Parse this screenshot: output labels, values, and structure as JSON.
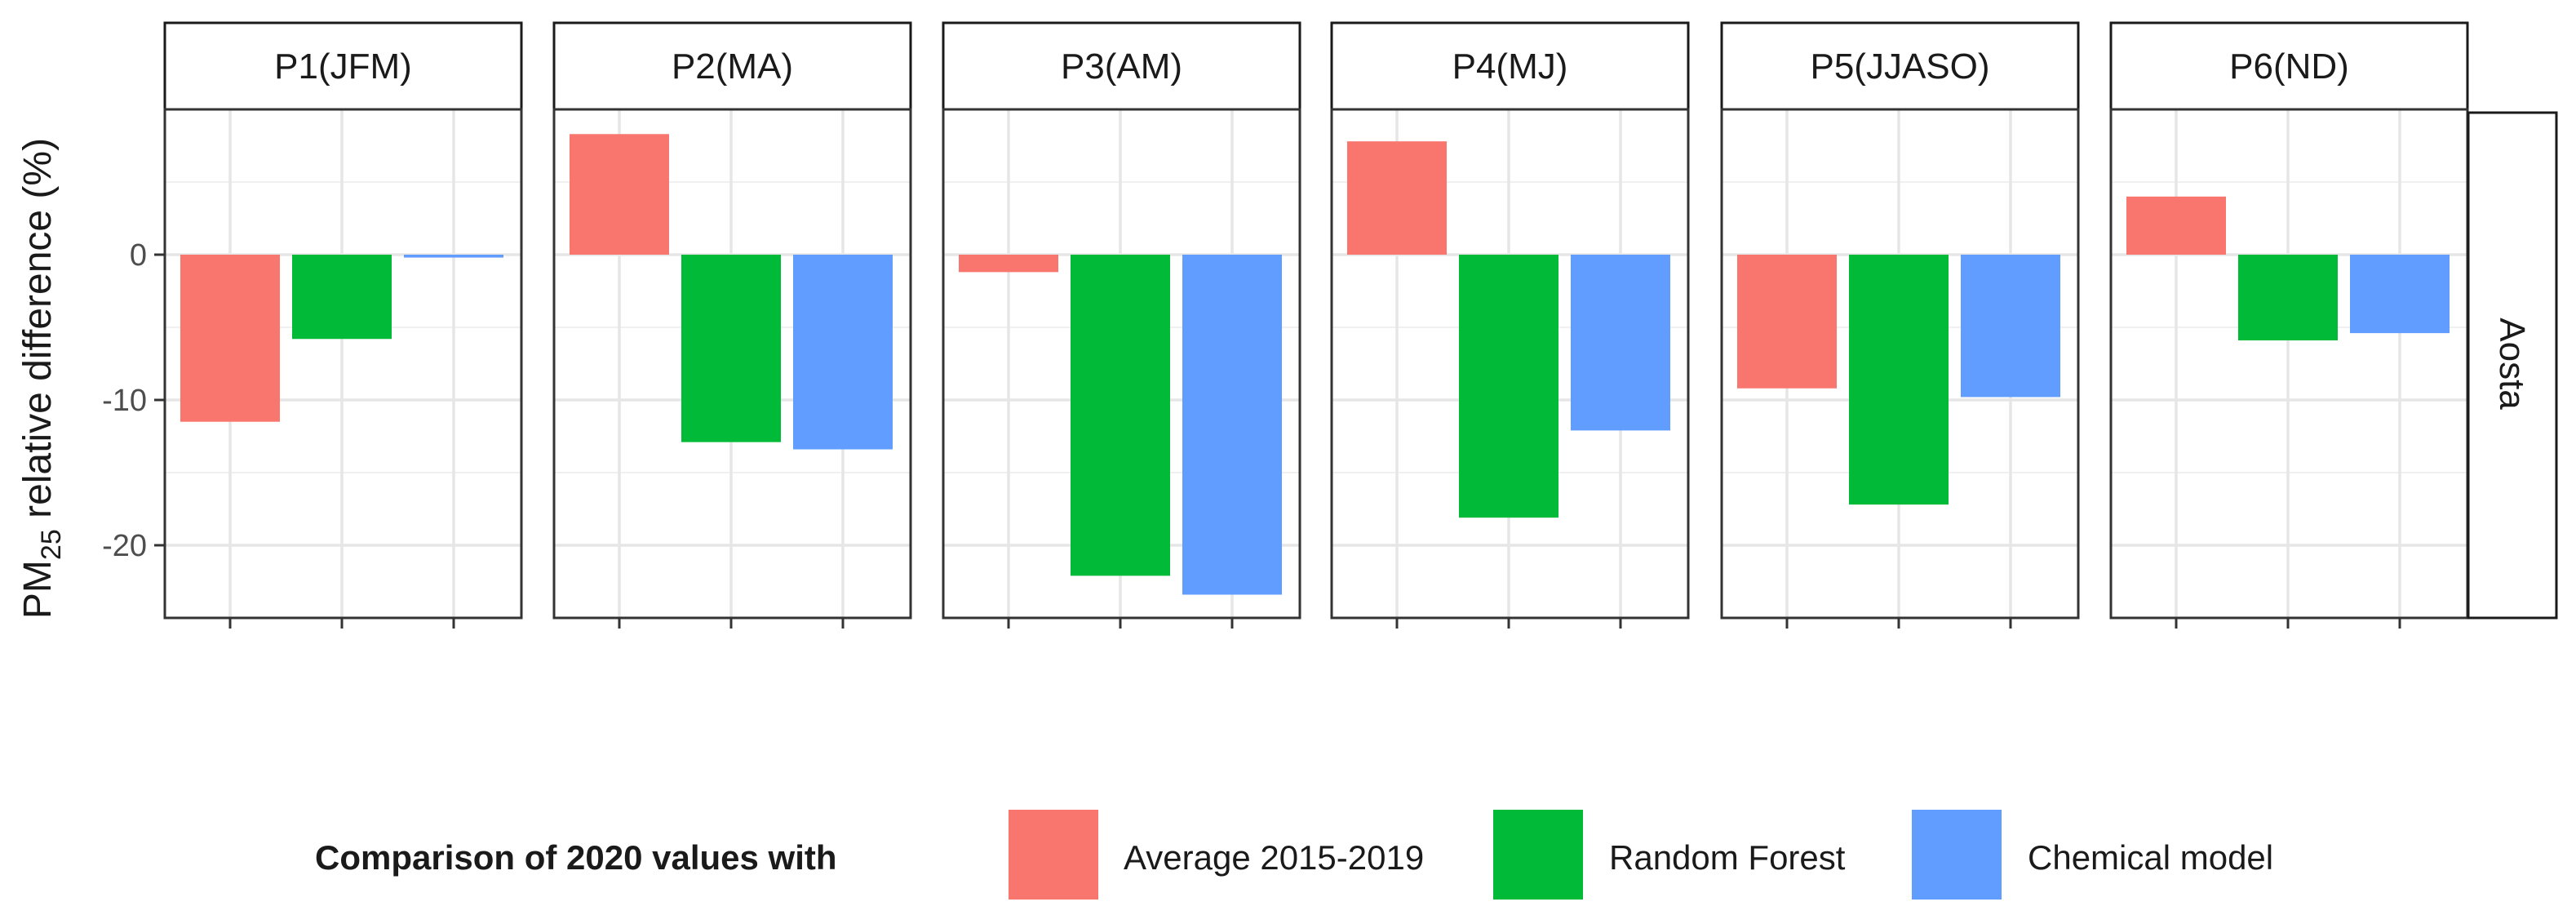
{
  "chart_data": {
    "type": "bar",
    "ylabel_prefix": "PM",
    "ylabel_subscript": "25",
    "ylabel_suffix": " relative difference (%)",
    "row_strip": "Aosta",
    "ylim": [
      -25,
      10
    ],
    "yticks": [
      0,
      -10,
      -20
    ],
    "ytick_labels": [
      "0",
      "-10",
      "-20"
    ],
    "legend_title": "Comparison of 2020 values with",
    "series": [
      {
        "name": "Average 2015-2019",
        "color": "#F8766D"
      },
      {
        "name": "Random Forest",
        "color": "#00BA38"
      },
      {
        "name": "Chemical model",
        "color": "#619CFF"
      }
    ],
    "panels": [
      {
        "label": "P1(JFM)",
        "values": [
          -11.5,
          -5.8,
          -0.2
        ]
      },
      {
        "label": "P2(MA)",
        "values": [
          8.3,
          -12.9,
          -13.4
        ]
      },
      {
        "label": "P3(AM)",
        "values": [
          -1.2,
          -22.1,
          -23.4
        ]
      },
      {
        "label": "P4(MJ)",
        "values": [
          7.8,
          -18.1,
          -12.1
        ]
      },
      {
        "label": "P5(JJASO)",
        "values": [
          -9.2,
          -17.2,
          -9.8
        ]
      },
      {
        "label": "P6(ND)",
        "values": [
          4.0,
          -5.9,
          -5.4
        ]
      }
    ]
  }
}
